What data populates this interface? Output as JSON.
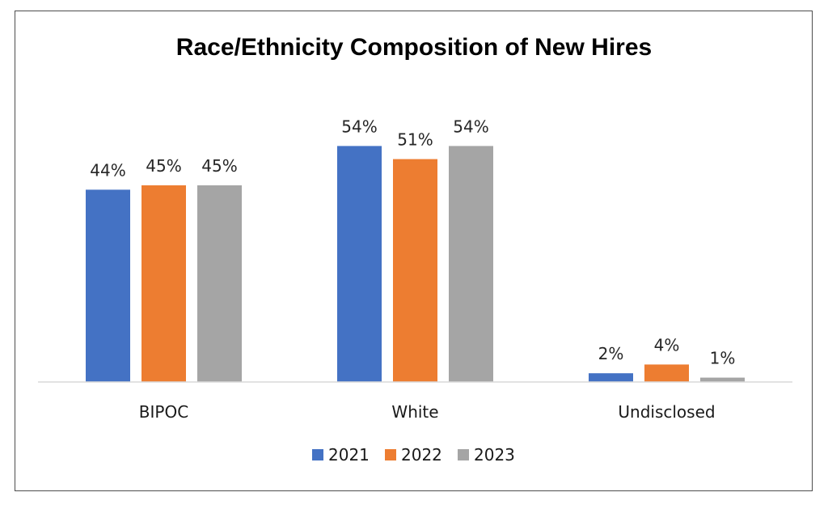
{
  "chart_data": {
    "type": "bar",
    "title": "Race/Ethnicity Composition of New Hires",
    "categories": [
      "BIPOC",
      "White",
      "Undisclosed"
    ],
    "series": [
      {
        "name": "2021",
        "color": "#4472C4",
        "values": [
          44,
          54,
          2
        ],
        "labels": [
          "44%",
          "54%",
          "2%"
        ]
      },
      {
        "name": "2022",
        "color": "#ED7D31",
        "values": [
          45,
          51,
          4
        ],
        "labels": [
          "45%",
          "51%",
          "4%"
        ]
      },
      {
        "name": "2023",
        "color": "#A5A5A5",
        "values": [
          45,
          54,
          1
        ],
        "labels": [
          "45%",
          "54%",
          "1%"
        ]
      }
    ],
    "xlabel": "",
    "ylabel": "",
    "ylim": [
      0,
      60
    ],
    "grid": false,
    "legend_position": "bottom",
    "value_unit": "%"
  }
}
